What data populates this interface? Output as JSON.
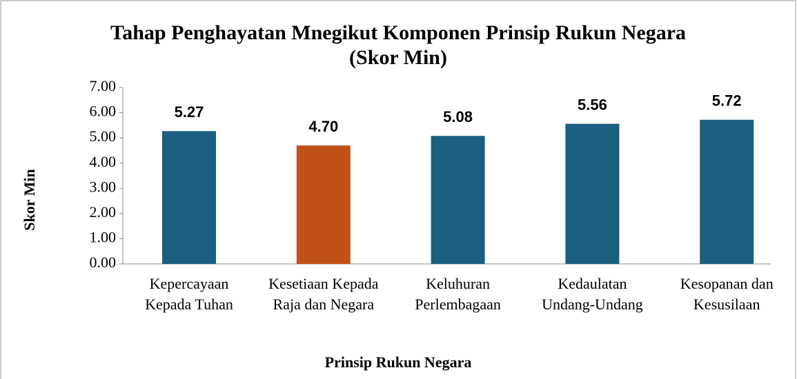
{
  "chart_data": {
    "type": "bar",
    "title": [
      "Tahap Penghayatan Mnegikut Komponen Prinsip Rukun Negara",
      "(Skor Min)"
    ],
    "x_label": "Prinsip Rukun Negara",
    "y_label": "Skor  Min",
    "categories": [
      [
        "Kepercayaan",
        "Kepada Tuhan"
      ],
      [
        "Kesetiaan Kepada",
        "Raja dan Negara"
      ],
      [
        "Keluhuran",
        "Perlembagaan"
      ],
      [
        "Kedaulatan",
        "Undang-Undang"
      ],
      [
        "Kesopanan dan",
        "Kesusilaan"
      ]
    ],
    "values": [
      5.27,
      4.7,
      5.08,
      5.56,
      5.72
    ],
    "value_labels": [
      "5.27",
      "4.70",
      "5.08",
      "5.56",
      "5.72"
    ],
    "colors": [
      "#1a5e80",
      "#c05018",
      "#1a5e80",
      "#1a5e80",
      "#1a5e80"
    ],
    "ylim": [
      0,
      7
    ],
    "yticks": [
      {
        "value": 0,
        "label": "0.00"
      },
      {
        "value": 1,
        "label": "1.00"
      },
      {
        "value": 2,
        "label": "2.00"
      },
      {
        "value": 3,
        "label": "3.00"
      },
      {
        "value": 4,
        "label": "4.00"
      },
      {
        "value": 5,
        "label": "5.00"
      },
      {
        "value": 6,
        "label": "6.00"
      },
      {
        "value": 7,
        "label": "7.00"
      }
    ],
    "grid": false
  }
}
